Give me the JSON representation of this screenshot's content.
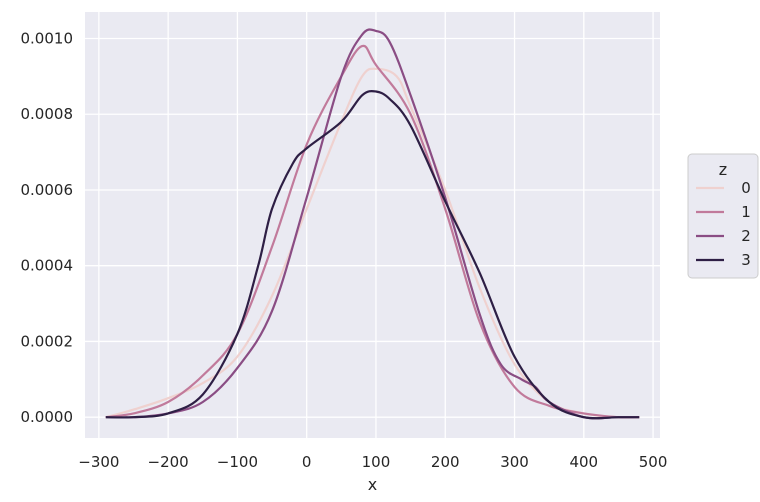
{
  "chart_data": {
    "type": "line",
    "title": "",
    "xlabel": "x",
    "ylabel": "",
    "xlim": [
      -320,
      510
    ],
    "ylim": [
      -5.5e-05,
      0.00107
    ],
    "x_ticks": [
      -300,
      -200,
      -100,
      0,
      100,
      200,
      300,
      400,
      500
    ],
    "x_tick_labels": [
      "−300",
      "−200",
      "−100",
      "0",
      "100",
      "200",
      "300",
      "400",
      "500"
    ],
    "y_ticks": [
      0,
      0.0002,
      0.0004,
      0.0006,
      0.0008,
      0.001
    ],
    "y_tick_labels": [
      "0.0000",
      "0.0002",
      "0.0004",
      "0.0006",
      "0.0008",
      "0.0010"
    ],
    "grid": true,
    "background": "#eaeaf2",
    "legend": {
      "title": "z",
      "placement": "outside-right"
    },
    "series": [
      {
        "name": "0",
        "color": "#efd1cf",
        "x": [
          -290,
          -250,
          -200,
          -150,
          -100,
          -50,
          0,
          50,
          80,
          100,
          130,
          150,
          200,
          250,
          300,
          350,
          400,
          450,
          480
        ],
        "y": [
          0.0,
          2e-05,
          5e-05,
          9e-05,
          0.00016,
          0.00032,
          0.00055,
          0.00078,
          0.0009,
          0.00092,
          0.0009,
          0.00082,
          0.0006,
          0.00034,
          0.00014,
          4e-05,
          1e-05,
          0.0,
          0.0
        ]
      },
      {
        "name": "1",
        "color": "#c17a9b",
        "x": [
          -290,
          -250,
          -200,
          -150,
          -100,
          -50,
          0,
          50,
          80,
          100,
          150,
          200,
          250,
          300,
          350,
          400,
          450,
          480
        ],
        "y": [
          0.0,
          1e-05,
          4e-05,
          0.00011,
          0.00022,
          0.00045,
          0.00072,
          0.0009,
          0.00098,
          0.00093,
          0.0008,
          0.00055,
          0.00025,
          8e-05,
          3e-05,
          1e-05,
          0.0,
          0.0
        ]
      },
      {
        "name": "2",
        "color": "#8a4d84",
        "x": [
          -290,
          -250,
          -200,
          -150,
          -100,
          -50,
          0,
          50,
          80,
          100,
          120,
          150,
          200,
          250,
          280,
          310,
          330,
          350,
          400,
          450,
          480
        ],
        "y": [
          0.0,
          0.0,
          1e-05,
          4e-05,
          0.00013,
          0.00028,
          0.00058,
          0.0009,
          0.00101,
          0.00102,
          0.00099,
          0.00085,
          0.00058,
          0.00027,
          0.00014,
          0.0001,
          8e-05,
          4e-05,
          0.0,
          0.0,
          0.0
        ]
      },
      {
        "name": "3",
        "color": "#2e1f45",
        "x": [
          -290,
          -250,
          -200,
          -150,
          -100,
          -70,
          -50,
          -20,
          0,
          50,
          80,
          100,
          120,
          150,
          200,
          250,
          300,
          350,
          400,
          450,
          480
        ],
        "y": [
          0.0,
          0.0,
          1e-05,
          6e-05,
          0.00022,
          0.0004,
          0.00055,
          0.00067,
          0.00071,
          0.00078,
          0.00085,
          0.00086,
          0.00084,
          0.00077,
          0.00057,
          0.00038,
          0.00016,
          4e-05,
          0.0,
          0.0,
          0.0
        ]
      }
    ]
  }
}
